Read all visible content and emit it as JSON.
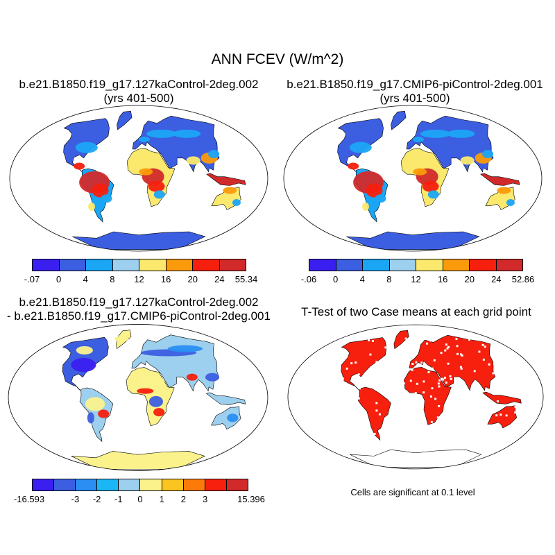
{
  "title": "ANN FCEV (W/m^2)",
  "panels": [
    {
      "id": "case1",
      "title_line1": "b.e21.B1850.f19_g17.127kaControl-2deg.002",
      "title_line2": "(yrs 401-500)",
      "legend": {
        "colors": [
          "#3a1ff0",
          "#3c5ee0",
          "#1ba5f5",
          "#9dcfee",
          "#fbe96e",
          "#fb9a0a",
          "#f71f0e",
          "#d22a2a"
        ],
        "labels": [
          ".07",
          "0",
          "4",
          "8",
          "12",
          "16",
          "20",
          "24",
          "55.34"
        ],
        "label_prefix_first": "-"
      }
    },
    {
      "id": "case2",
      "title_line1": "b.e21.B1850.f19_g17.CMIP6-piControl-2deg.001",
      "title_line2": "(yrs 401-500)",
      "legend": {
        "colors": [
          "#3a1ff0",
          "#3c5ee0",
          "#1ba5f5",
          "#9dcfee",
          "#fbe96e",
          "#fb9a0a",
          "#f71f0e",
          "#d22a2a"
        ],
        "labels": [
          ".06",
          "0",
          "4",
          "8",
          "12",
          "16",
          "20",
          "24",
          "52.86"
        ],
        "label_prefix_first": "-"
      }
    },
    {
      "id": "diff",
      "title_line1": "b.e21.B1850.f19_g17.127kaControl-2deg.002",
      "title_line2": "- b.e21.B1850.f19_g17.CMIP6-piControl-2deg.001",
      "legend": {
        "colors": [
          "#3a1ff0",
          "#3c5ee0",
          "#2a8ef2",
          "#1bb6f5",
          "#9dcfee",
          "#fbf28c",
          "#fbc521",
          "#fb7a0a",
          "#f71f0e",
          "#d22a2a"
        ],
        "labels": [
          "-16.593",
          "",
          "-3",
          "-2",
          "-1",
          "0",
          "1",
          "2",
          "3",
          "",
          "15.396"
        ]
      }
    },
    {
      "id": "ttest",
      "title_line1": "T-Test of two Case means at each grid point",
      "note": "Cells are significant at 0.1 level"
    }
  ]
}
